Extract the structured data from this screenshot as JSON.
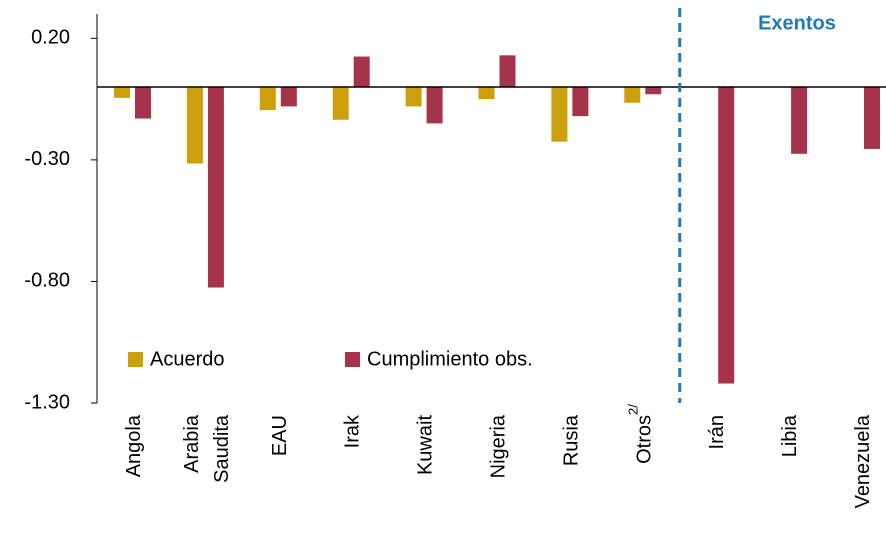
{
  "chart_data": {
    "type": "bar",
    "categories": [
      "Angola",
      "Arabia Saudita",
      "EAU",
      "Irak",
      "Kuwait",
      "Nigeria",
      "Rusia",
      "Otros",
      "Irán",
      "Libia",
      "Venezuela"
    ],
    "category_superscripts": [
      null,
      null,
      null,
      null,
      null,
      null,
      null,
      "2/",
      null,
      null,
      null
    ],
    "series": [
      {
        "name": "Acuerdo",
        "color": "#CC9F0C",
        "values": [
          -0.045,
          -0.315,
          -0.095,
          -0.135,
          -0.08,
          -0.05,
          -0.225,
          -0.065,
          null,
          null,
          null
        ]
      },
      {
        "name": "Cumplimiento obs.",
        "color": "#A5334A",
        "values": [
          -0.13,
          -0.825,
          -0.08,
          0.125,
          -0.15,
          0.13,
          -0.12,
          -0.03,
          -1.22,
          -0.275,
          -0.255
        ]
      }
    ],
    "ylim": [
      -1.3,
      0.3
    ],
    "yticks": [
      {
        "value": 0.2,
        "label": "0.20"
      },
      {
        "value": -0.3,
        "label": "-0.30"
      },
      {
        "value": -0.8,
        "label": "-0.80"
      },
      {
        "value": -1.3,
        "label": "-1.30"
      }
    ],
    "annotation": "Exentos",
    "annotation_color": "#1F7AB5"
  }
}
